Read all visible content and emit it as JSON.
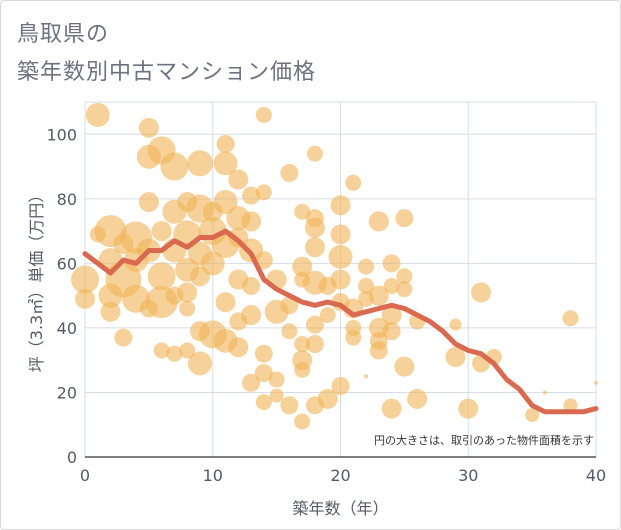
{
  "header": {
    "title_line1": "鳥取県の",
    "title_line2": "築年数別中古マンション価格"
  },
  "chart_data": {
    "type": "scatter",
    "xlabel": "築年数（年）",
    "ylabel": "坪（3.3㎡）単価（万円）",
    "xlim": [
      0,
      40
    ],
    "ylim": [
      0,
      110
    ],
    "xticks": [
      0,
      10,
      20,
      30,
      40
    ],
    "yticks": [
      0,
      20,
      40,
      60,
      80,
      100
    ],
    "grid": true,
    "annotation": "円の大きさは、取引のあった物件面積を示す",
    "colors": {
      "bubble": "#f0b55a",
      "line": "#d9694f",
      "grid": "#d7dde6",
      "axis": "#555b66"
    },
    "series": [
      {
        "kind": "bubble",
        "points": [
          {
            "x": 1,
            "y": 106,
            "s": 12
          },
          {
            "x": 5,
            "y": 102,
            "s": 10
          },
          {
            "x": 5,
            "y": 93,
            "s": 12
          },
          {
            "x": 6,
            "y": 95,
            "s": 14
          },
          {
            "x": 7,
            "y": 90,
            "s": 14
          },
          {
            "x": 9,
            "y": 91,
            "s": 13
          },
          {
            "x": 11,
            "y": 97,
            "s": 9
          },
          {
            "x": 11,
            "y": 91,
            "s": 12
          },
          {
            "x": 14,
            "y": 106,
            "s": 8
          },
          {
            "x": 12,
            "y": 86,
            "s": 10
          },
          {
            "x": 16,
            "y": 88,
            "s": 9
          },
          {
            "x": 18,
            "y": 94,
            "s": 8
          },
          {
            "x": 21,
            "y": 85,
            "s": 8
          },
          {
            "x": 0,
            "y": 55,
            "s": 14
          },
          {
            "x": 0,
            "y": 49,
            "s": 10
          },
          {
            "x": 1,
            "y": 69,
            "s": 8
          },
          {
            "x": 2,
            "y": 70,
            "s": 16
          },
          {
            "x": 2,
            "y": 61,
            "s": 12
          },
          {
            "x": 2,
            "y": 50,
            "s": 12
          },
          {
            "x": 2,
            "y": 45,
            "s": 10
          },
          {
            "x": 3,
            "y": 66,
            "s": 10
          },
          {
            "x": 3,
            "y": 55,
            "s": 18
          },
          {
            "x": 3,
            "y": 37,
            "s": 9
          },
          {
            "x": 4,
            "y": 68,
            "s": 16
          },
          {
            "x": 4,
            "y": 61,
            "s": 12
          },
          {
            "x": 4,
            "y": 49,
            "s": 14
          },
          {
            "x": 5,
            "y": 79,
            "s": 10
          },
          {
            "x": 5,
            "y": 64,
            "s": 12
          },
          {
            "x": 5,
            "y": 46,
            "s": 9
          },
          {
            "x": 6,
            "y": 70,
            "s": 10
          },
          {
            "x": 6,
            "y": 56,
            "s": 14
          },
          {
            "x": 6,
            "y": 48,
            "s": 16
          },
          {
            "x": 6,
            "y": 33,
            "s": 8
          },
          {
            "x": 7,
            "y": 76,
            "s": 12
          },
          {
            "x": 7,
            "y": 64,
            "s": 12
          },
          {
            "x": 7,
            "y": 50,
            "s": 9
          },
          {
            "x": 7,
            "y": 32,
            "s": 8
          },
          {
            "x": 8,
            "y": 79,
            "s": 10
          },
          {
            "x": 8,
            "y": 69,
            "s": 14
          },
          {
            "x": 8,
            "y": 58,
            "s": 12
          },
          {
            "x": 8,
            "y": 51,
            "s": 10
          },
          {
            "x": 8,
            "y": 46,
            "s": 8
          },
          {
            "x": 8,
            "y": 33,
            "s": 8
          },
          {
            "x": 9,
            "y": 77,
            "s": 14
          },
          {
            "x": 9,
            "y": 63,
            "s": 12
          },
          {
            "x": 9,
            "y": 56,
            "s": 10
          },
          {
            "x": 9,
            "y": 39,
            "s": 10
          },
          {
            "x": 9,
            "y": 29,
            "s": 12
          },
          {
            "x": 10,
            "y": 76,
            "s": 10
          },
          {
            "x": 10,
            "y": 70,
            "s": 14
          },
          {
            "x": 10,
            "y": 60,
            "s": 12
          },
          {
            "x": 10,
            "y": 38,
            "s": 14
          },
          {
            "x": 11,
            "y": 79,
            "s": 12
          },
          {
            "x": 11,
            "y": 66,
            "s": 14
          },
          {
            "x": 11,
            "y": 48,
            "s": 10
          },
          {
            "x": 11,
            "y": 36,
            "s": 12
          },
          {
            "x": 12,
            "y": 74,
            "s": 12
          },
          {
            "x": 12,
            "y": 68,
            "s": 10
          },
          {
            "x": 12,
            "y": 55,
            "s": 10
          },
          {
            "x": 12,
            "y": 42,
            "s": 9
          },
          {
            "x": 12,
            "y": 34,
            "s": 10
          },
          {
            "x": 13,
            "y": 81,
            "s": 9
          },
          {
            "x": 13,
            "y": 73,
            "s": 10
          },
          {
            "x": 13,
            "y": 64,
            "s": 12
          },
          {
            "x": 13,
            "y": 53,
            "s": 9
          },
          {
            "x": 13,
            "y": 44,
            "s": 10
          },
          {
            "x": 13,
            "y": 23,
            "s": 9
          },
          {
            "x": 14,
            "y": 82,
            "s": 8
          },
          {
            "x": 14,
            "y": 61,
            "s": 9
          },
          {
            "x": 14,
            "y": 32,
            "s": 9
          },
          {
            "x": 14,
            "y": 26,
            "s": 9
          },
          {
            "x": 14,
            "y": 17,
            "s": 8
          },
          {
            "x": 15,
            "y": 55,
            "s": 10
          },
          {
            "x": 15,
            "y": 45,
            "s": 12
          },
          {
            "x": 15,
            "y": 24,
            "s": 8
          },
          {
            "x": 15,
            "y": 19,
            "s": 7
          },
          {
            "x": 16,
            "y": 47,
            "s": 9
          },
          {
            "x": 16,
            "y": 39,
            "s": 8
          },
          {
            "x": 16,
            "y": 16,
            "s": 9
          },
          {
            "x": 17,
            "y": 76,
            "s": 8
          },
          {
            "x": 17,
            "y": 59,
            "s": 10
          },
          {
            "x": 17,
            "y": 55,
            "s": 8
          },
          {
            "x": 17,
            "y": 35,
            "s": 8
          },
          {
            "x": 17,
            "y": 30,
            "s": 10
          },
          {
            "x": 17,
            "y": 27,
            "s": 8
          },
          {
            "x": 17,
            "y": 11,
            "s": 8
          },
          {
            "x": 18,
            "y": 74,
            "s": 9
          },
          {
            "x": 18,
            "y": 71,
            "s": 10
          },
          {
            "x": 18,
            "y": 65,
            "s": 10
          },
          {
            "x": 18,
            "y": 54,
            "s": 12
          },
          {
            "x": 18,
            "y": 41,
            "s": 9
          },
          {
            "x": 18,
            "y": 35,
            "s": 9
          },
          {
            "x": 18,
            "y": 16,
            "s": 9
          },
          {
            "x": 19,
            "y": 53,
            "s": 9
          },
          {
            "x": 19,
            "y": 44,
            "s": 8
          },
          {
            "x": 19,
            "y": 18,
            "s": 10
          },
          {
            "x": 20,
            "y": 78,
            "s": 10
          },
          {
            "x": 20,
            "y": 69,
            "s": 10
          },
          {
            "x": 20,
            "y": 62,
            "s": 12
          },
          {
            "x": 20,
            "y": 55,
            "s": 10
          },
          {
            "x": 20,
            "y": 48,
            "s": 9
          },
          {
            "x": 20,
            "y": 22,
            "s": 9
          },
          {
            "x": 21,
            "y": 46,
            "s": 10
          },
          {
            "x": 21,
            "y": 37,
            "s": 8
          },
          {
            "x": 21,
            "y": 40,
            "s": 8
          },
          {
            "x": 22,
            "y": 59,
            "s": 8
          },
          {
            "x": 22,
            "y": 53,
            "s": 8
          },
          {
            "x": 22,
            "y": 49,
            "s": 8
          },
          {
            "x": 23,
            "y": 73,
            "s": 10
          },
          {
            "x": 23,
            "y": 50,
            "s": 10
          },
          {
            "x": 23,
            "y": 40,
            "s": 10
          },
          {
            "x": 23,
            "y": 36,
            "s": 9
          },
          {
            "x": 23,
            "y": 33,
            "s": 9
          },
          {
            "x": 24,
            "y": 60,
            "s": 9
          },
          {
            "x": 24,
            "y": 53,
            "s": 8
          },
          {
            "x": 24,
            "y": 44,
            "s": 10
          },
          {
            "x": 24,
            "y": 39,
            "s": 9
          },
          {
            "x": 24,
            "y": 15,
            "s": 10
          },
          {
            "x": 25,
            "y": 74,
            "s": 9
          },
          {
            "x": 25,
            "y": 56,
            "s": 8
          },
          {
            "x": 25,
            "y": 52,
            "s": 8
          },
          {
            "x": 25,
            "y": 28,
            "s": 10
          },
          {
            "x": 26,
            "y": 42,
            "s": 8
          },
          {
            "x": 26,
            "y": 18,
            "s": 10
          },
          {
            "x": 29,
            "y": 31,
            "s": 10
          },
          {
            "x": 30,
            "y": 15,
            "s": 10
          },
          {
            "x": 31,
            "y": 51,
            "s": 10
          },
          {
            "x": 31,
            "y": 29,
            "s": 9
          },
          {
            "x": 32,
            "y": 31,
            "s": 8
          },
          {
            "x": 35,
            "y": 13,
            "s": 7
          },
          {
            "x": 38,
            "y": 43,
            "s": 8
          },
          {
            "x": 38,
            "y": 16,
            "s": 7
          },
          {
            "x": 29,
            "y": 41,
            "s": 6
          },
          {
            "x": 22,
            "y": 25,
            "s": 2
          },
          {
            "x": 36,
            "y": 20,
            "s": 2
          },
          {
            "x": 40,
            "y": 23,
            "s": 2
          }
        ]
      },
      {
        "kind": "line",
        "points": [
          {
            "x": 0,
            "y": 63
          },
          {
            "x": 1,
            "y": 60
          },
          {
            "x": 2,
            "y": 57
          },
          {
            "x": 3,
            "y": 61
          },
          {
            "x": 4,
            "y": 60
          },
          {
            "x": 5,
            "y": 64
          },
          {
            "x": 6,
            "y": 64
          },
          {
            "x": 7,
            "y": 67
          },
          {
            "x": 8,
            "y": 65
          },
          {
            "x": 9,
            "y": 68
          },
          {
            "x": 10,
            "y": 68
          },
          {
            "x": 11,
            "y": 70
          },
          {
            "x": 12,
            "y": 67
          },
          {
            "x": 13,
            "y": 63
          },
          {
            "x": 14,
            "y": 55
          },
          {
            "x": 15,
            "y": 52
          },
          {
            "x": 16,
            "y": 50
          },
          {
            "x": 17,
            "y": 48
          },
          {
            "x": 18,
            "y": 47
          },
          {
            "x": 19,
            "y": 48
          },
          {
            "x": 20,
            "y": 47
          },
          {
            "x": 21,
            "y": 44
          },
          {
            "x": 22,
            "y": 45
          },
          {
            "x": 23,
            "y": 46
          },
          {
            "x": 24,
            "y": 47
          },
          {
            "x": 25,
            "y": 46
          },
          {
            "x": 26,
            "y": 44
          },
          {
            "x": 27,
            "y": 42
          },
          {
            "x": 28,
            "y": 39
          },
          {
            "x": 29,
            "y": 35
          },
          {
            "x": 30,
            "y": 33
          },
          {
            "x": 31,
            "y": 32
          },
          {
            "x": 32,
            "y": 29
          },
          {
            "x": 33,
            "y": 24
          },
          {
            "x": 34,
            "y": 21
          },
          {
            "x": 35,
            "y": 16
          },
          {
            "x": 36,
            "y": 14
          },
          {
            "x": 37,
            "y": 14
          },
          {
            "x": 38,
            "y": 14
          },
          {
            "x": 39,
            "y": 14
          },
          {
            "x": 40,
            "y": 15
          }
        ]
      }
    ]
  }
}
